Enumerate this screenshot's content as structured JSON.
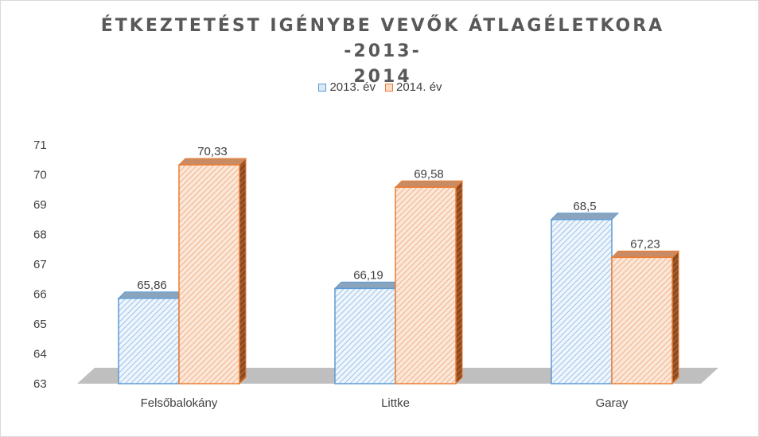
{
  "chart_data": {
    "type": "bar",
    "title": "ÉTKEZTETÉST IGÉNYBE VEVŐK ÁTLAGÉLETKORA -2013-2014",
    "title_lines": [
      "ÉTKEZTETÉST IGÉNYBE VEVŐK ÁTLAGÉLETKORA -2013-",
      "2014"
    ],
    "categories": [
      "Felsőbalokány",
      "Littke",
      "Garay"
    ],
    "series": [
      {
        "name": "2013. év",
        "values": [
          65.86,
          66.19,
          68.5
        ],
        "labels": [
          "65,86",
          "66,19",
          "68,5"
        ],
        "color": "#5b9bd5"
      },
      {
        "name": "2014. év",
        "values": [
          70.33,
          69.58,
          67.23
        ],
        "labels": [
          "70,33",
          "69,58",
          "67,23"
        ],
        "color": "#ed7d31"
      }
    ],
    "ylim": [
      63,
      71
    ],
    "yticks": [
      "63",
      "64",
      "65",
      "66",
      "67",
      "68",
      "69",
      "70",
      "71"
    ],
    "xlabel": "",
    "ylabel": "",
    "legend": "top",
    "grid": false,
    "style": "3d-clustered-column"
  }
}
